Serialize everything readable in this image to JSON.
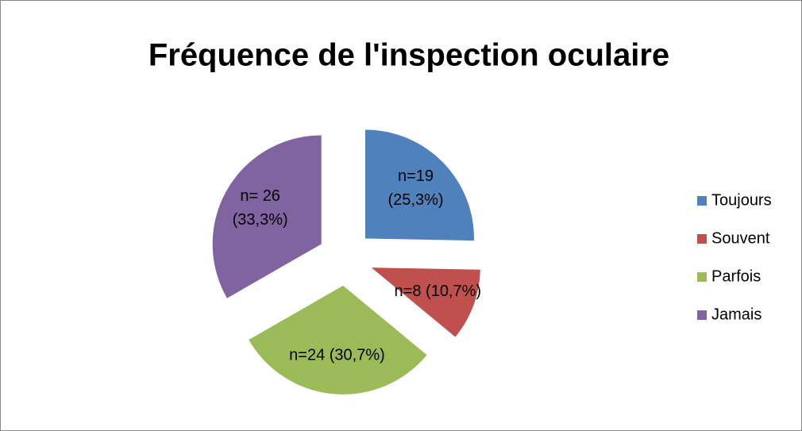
{
  "chart_data": {
    "type": "pie",
    "title": "Fréquence de l'inspection oculaire",
    "categories": [
      "Toujours",
      "Souvent",
      "Parfois",
      "Jamais"
    ],
    "values": [
      25.3,
      10.7,
      30.7,
      33.3
    ],
    "value_labels": [
      [
        "n=19",
        "(25,3%)"
      ],
      [
        "n=8 (10,7%)"
      ],
      [
        "n=24 (30,7%)"
      ],
      [
        "n= 26",
        "(33,3%)"
      ]
    ],
    "colors": [
      "#4f81bd",
      "#c0504d",
      "#9bbb59",
      "#8064a2"
    ],
    "legend": "right"
  }
}
